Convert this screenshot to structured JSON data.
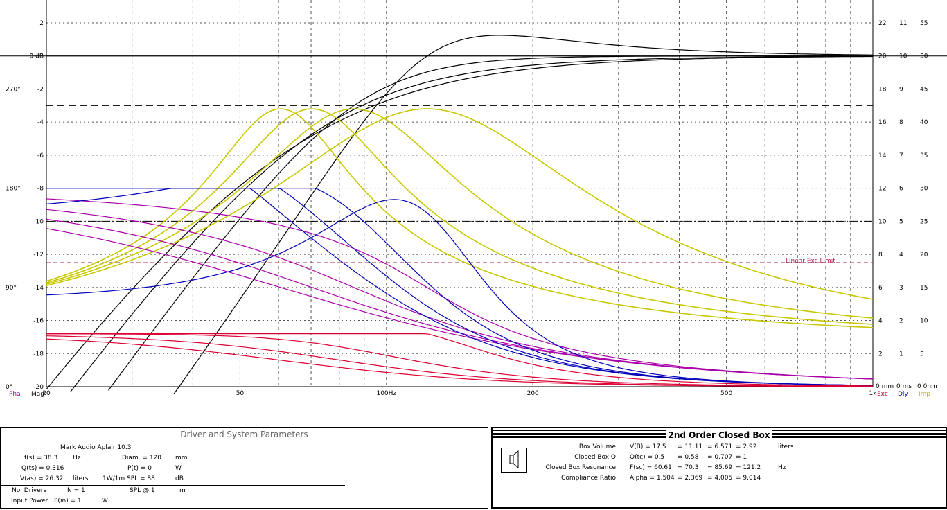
{
  "chart_data": {
    "type": "line",
    "x_scale": "log",
    "xlim": [
      20,
      1000
    ],
    "ylim": [
      -20,
      3
    ],
    "grid": true,
    "x_ticks": [
      {
        "v": 20,
        "label": "20"
      },
      {
        "v": 50,
        "label": "50"
      },
      {
        "v": 100,
        "label": "100Hz"
      },
      {
        "v": 200,
        "label": "200"
      },
      {
        "v": 500,
        "label": "500"
      },
      {
        "v": 1000,
        "label": "1k"
      }
    ],
    "y_ticks_mag": [
      {
        "v": 2,
        "label": "2"
      },
      {
        "v": 0,
        "label": "0 dB"
      },
      {
        "v": -2,
        "label": "-2"
      },
      {
        "v": -4,
        "label": "-4"
      },
      {
        "v": -6,
        "label": "-6"
      },
      {
        "v": -8,
        "label": "-8"
      },
      {
        "v": -10,
        "label": "-10"
      },
      {
        "v": -12,
        "label": "-12"
      },
      {
        "v": -14,
        "label": "-14"
      },
      {
        "v": -16,
        "label": "-16"
      },
      {
        "v": -18,
        "label": "-18"
      },
      {
        "v": -20,
        "label": "-20"
      }
    ],
    "y_ticks_phase": [
      {
        "v": -2,
        "label": "270°"
      },
      {
        "v": -8,
        "label": "180°"
      },
      {
        "v": -14,
        "label": "90°"
      },
      {
        "v": -20,
        "label": "0°"
      }
    ],
    "right_axes": [
      {
        "name": "Exc",
        "ticks": [
          "22",
          "20",
          "18",
          "16",
          "14",
          "12",
          "10",
          "8",
          "6",
          "4",
          "2"
        ],
        "bottom": "0 mm",
        "color": "#cc0033"
      },
      {
        "name": "Dly",
        "ticks": [
          "11",
          "10",
          "9",
          "8",
          "7",
          "6",
          "5",
          "4",
          "3",
          "2",
          "1"
        ],
        "bottom": "0 ms",
        "color": "#0000cc"
      },
      {
        "name": "Imp",
        "ticks": [
          "55",
          "50",
          "45",
          "40",
          "35",
          "30",
          "25",
          "20",
          "15",
          "10",
          "5"
        ],
        "bottom": "0 0hm",
        "color": "#b8b800"
      }
    ],
    "axis_labels": {
      "pha": "Pha",
      "mag": "Mag"
    },
    "reference_lines": [
      {
        "y": -3,
        "style": "dashed"
      },
      {
        "y": -10,
        "style": "dash-dot"
      },
      {
        "y": -12.5,
        "style": "dashed",
        "color": "#aa2255",
        "label": "Linear Exc Limit"
      }
    ],
    "colors": {
      "magnitude": "#000000",
      "phase": "#aa00aa",
      "delay": "#0000bb",
      "impedance": "#c8c800",
      "excursion": "#dd0033"
    },
    "series": [
      {
        "kind": "magnitude",
        "fc": 60.61,
        "qtc": 0.5
      },
      {
        "kind": "magnitude",
        "fc": 70.3,
        "qtc": 0.58
      },
      {
        "kind": "magnitude",
        "fc": 85.69,
        "qtc": 0.707
      },
      {
        "kind": "magnitude",
        "fc": 121.2,
        "qtc": 1.0
      },
      {
        "kind": "impedance",
        "fc": 60.61,
        "qtc": 0.5
      },
      {
        "kind": "impedance",
        "fc": 70.3,
        "qtc": 0.58
      },
      {
        "kind": "impedance",
        "fc": 85.69,
        "qtc": 0.707
      },
      {
        "kind": "impedance",
        "fc": 121.2,
        "qtc": 1.0
      },
      {
        "kind": "phase",
        "fc": 60.61,
        "qtc": 0.5
      },
      {
        "kind": "phase",
        "fc": 70.3,
        "qtc": 0.58
      },
      {
        "kind": "phase",
        "fc": 85.69,
        "qtc": 0.707
      },
      {
        "kind": "phase",
        "fc": 121.2,
        "qtc": 1.0
      },
      {
        "kind": "delay",
        "fc": 60.61,
        "qtc": 0.5
      },
      {
        "kind": "delay",
        "fc": 70.3,
        "qtc": 0.58
      },
      {
        "kind": "delay",
        "fc": 85.69,
        "qtc": 0.707
      },
      {
        "kind": "delay",
        "fc": 121.2,
        "qtc": 1.0
      },
      {
        "kind": "excursion",
        "fc": 60.61,
        "qtc": 0.5
      },
      {
        "kind": "excursion",
        "fc": 70.3,
        "qtc": 0.58
      },
      {
        "kind": "excursion",
        "fc": 85.69,
        "qtc": 0.707
      },
      {
        "kind": "excursion",
        "fc": 121.2,
        "qtc": 1.0
      }
    ]
  },
  "driver_panel": {
    "title": "Driver and System Parameters",
    "driver_name": "Mark Audio  Aplair 10.3",
    "fs": "f(s) = 38.3",
    "fs_unit": "Hz",
    "qts": "Q(ts) = 0.316",
    "vas": "V(as) = 26.32",
    "vas_unit": "liters",
    "diam": "Diam. = 120",
    "diam_unit": "mm",
    "pt": "P(t) = 0",
    "pt_unit": "W",
    "spl": "1W/1m SPL = 88",
    "spl_unit": "dB",
    "drivers_label": "No. Drivers",
    "drivers_value": "N = 1",
    "power_label": "Input Power",
    "power_value": "P(in) = 1",
    "power_unit": "W",
    "spl_at_label": "SPL @ 1",
    "spl_at_unit": "m"
  },
  "box_panel": {
    "title": "2nd Order Closed Box",
    "rows": [
      {
        "label": "Box Volume",
        "sym": "V(B) = 17.5",
        "v2": "= 11.11",
        "v3": "= 6.571",
        "v4": "= 2.92",
        "unit": "liters"
      },
      {
        "label": "Closed Box Q",
        "sym": "Q(tc) = 0.5",
        "v2": "= 0.58",
        "v3": "= 0.707",
        "v4": "= 1",
        "unit": ""
      },
      {
        "label": "Closed Box Resonance",
        "sym": "F(sc) = 60.61",
        "v2": "= 70.3",
        "v3": "= 85.69",
        "v4": "= 121.2",
        "unit": "Hz"
      },
      {
        "label": "Compliance Ratio",
        "sym": "Alpha = 1.504",
        "v2": "= 2.369",
        "v3": "= 4.005",
        "v4": "= 9.014",
        "unit": ""
      }
    ]
  }
}
